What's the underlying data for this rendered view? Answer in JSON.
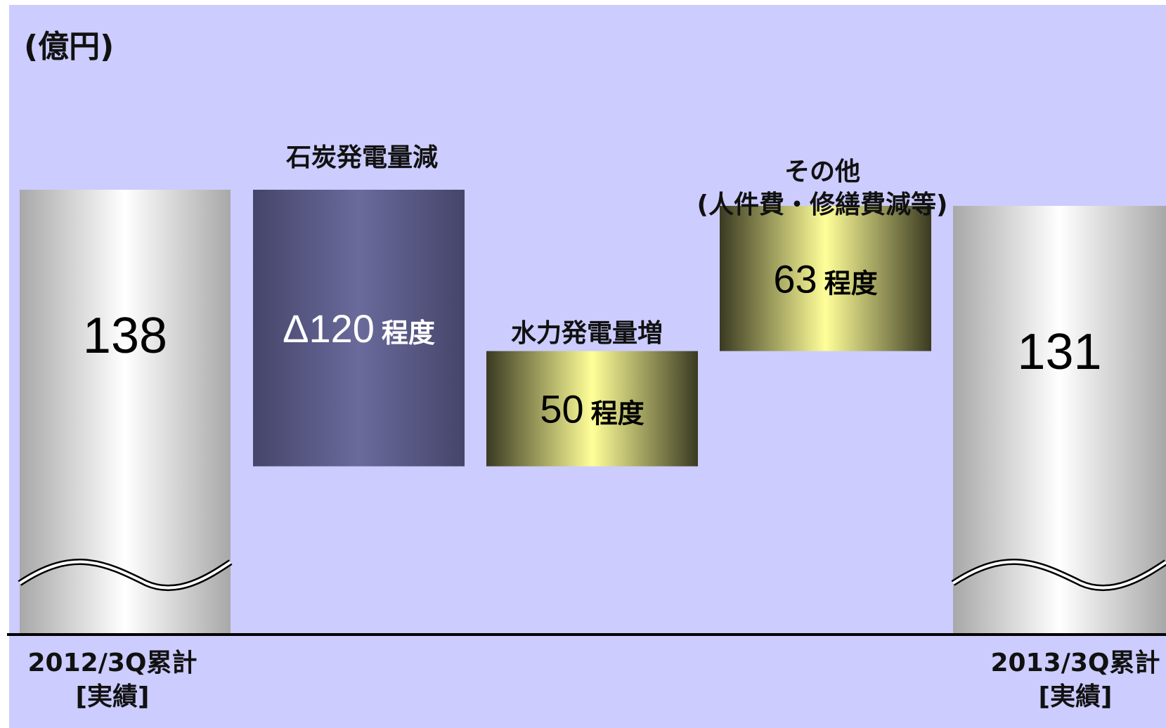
{
  "chart_data": {
    "type": "bar",
    "subtype": "waterfall",
    "unit_label": "(億円)",
    "categories": [
      {
        "label": "2012/3Q累計",
        "sublabel": "[実績]",
        "value": 138,
        "kind": "total",
        "value_label": "138"
      },
      {
        "label": "石炭発電量減",
        "value": -120,
        "kind": "decrease",
        "value_label": "Δ120",
        "suffix": "程度"
      },
      {
        "label": "水力発電量増",
        "value": 50,
        "kind": "increase",
        "value_label": "50",
        "suffix": "程度"
      },
      {
        "label": "その他",
        "label2": "(人件費・修繕費減等)",
        "value": 63,
        "kind": "increase",
        "value_label": "63",
        "suffix": "程度"
      },
      {
        "label": "2013/3Q累計",
        "sublabel": "[実績]",
        "value": 131,
        "kind": "total",
        "value_label": "131"
      }
    ],
    "axis_break": true,
    "colors": {
      "background": "#ccccff",
      "baseline": "#000000",
      "total_bar": "#c8c8c8",
      "decrease_bar": "#5a5a8c",
      "increase_bar": "#f0f09a"
    }
  }
}
